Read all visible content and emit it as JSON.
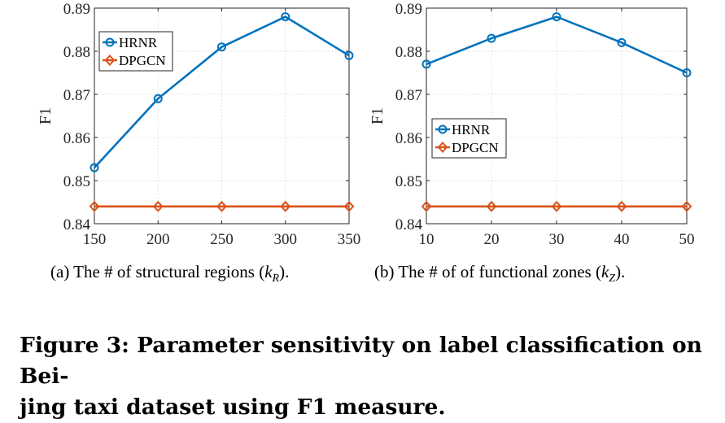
{
  "charts": {
    "chart_data": [
      {
        "type": "line",
        "x": [
          150,
          200,
          250,
          300,
          350
        ],
        "series": [
          {
            "name": "HRNR",
            "values": [
              0.853,
              0.869,
              0.881,
              0.888,
              0.879
            ],
            "color": "#0072BD",
            "marker": "circle"
          },
          {
            "name": "DPGCN",
            "values": [
              0.844,
              0.844,
              0.844,
              0.844,
              0.844
            ],
            "color": "#D95319",
            "marker": "diamond"
          }
        ],
        "ylabel": "F1",
        "xlim": [
          150,
          350
        ],
        "ylim": [
          0.84,
          0.89
        ],
        "xticks": [
          150,
          200,
          250,
          300,
          350
        ],
        "yticks": [
          "0.84",
          "0.85",
          "0.86",
          "0.87",
          "0.88",
          "0.89"
        ],
        "grid": true,
        "legend_position": "top-left"
      },
      {
        "type": "line",
        "x": [
          10,
          20,
          30,
          40,
          50
        ],
        "series": [
          {
            "name": "HRNR",
            "values": [
              0.877,
              0.883,
              0.888,
              0.882,
              0.875
            ],
            "color": "#0072BD",
            "marker": "circle"
          },
          {
            "name": "DPGCN",
            "values": [
              0.844,
              0.844,
              0.844,
              0.844,
              0.844
            ],
            "color": "#D95319",
            "marker": "diamond"
          }
        ],
        "ylabel": "F1",
        "xlim": [
          10,
          50
        ],
        "ylim": [
          0.84,
          0.89
        ],
        "xticks": [
          10,
          20,
          30,
          40,
          50
        ],
        "yticks": [
          "0.84",
          "0.85",
          "0.86",
          "0.87",
          "0.88",
          "0.89"
        ],
        "grid": true,
        "legend_position": "center-left"
      }
    ]
  },
  "captions": {
    "a_prefix": "(a)  The # of structural regions (",
    "a_var": "k",
    "a_sub": "R",
    "a_suffix": ").",
    "b_prefix": "(b)  The # of of functional zones (",
    "b_var": "k",
    "b_sub": "Z",
    "b_suffix": ").",
    "figure": "Figure 3: Parameter sensitivity on label classification on Beijing taxi dataset using F1 measure."
  },
  "figure_caption_line1": "Figure 3: Parameter sensitivity on label classification on Bei-",
  "figure_caption_line2": "jing taxi dataset using F1 measure."
}
